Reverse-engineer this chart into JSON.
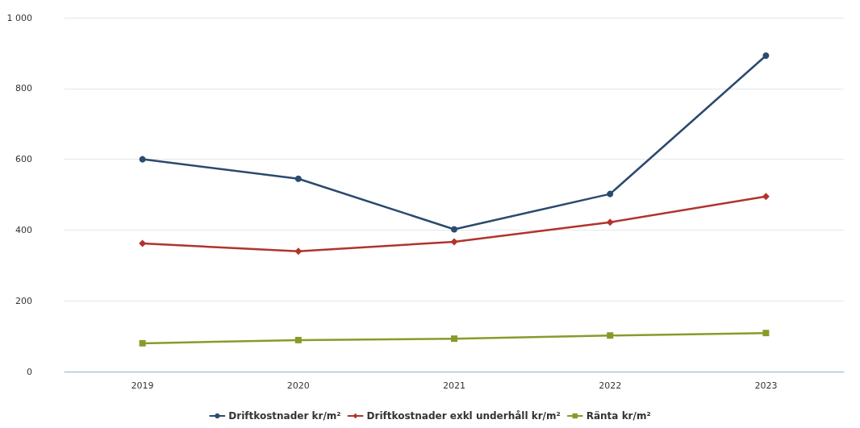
{
  "chart_data": {
    "type": "line",
    "categories": [
      "2019",
      "2020",
      "2021",
      "2022",
      "2023"
    ],
    "series": [
      {
        "name": "Driftkostnader kr/m²",
        "color": "#2b4a6e",
        "marker": "circle",
        "values": [
          600,
          545,
          402,
          502,
          893
        ]
      },
      {
        "name": "Driftkostnader exkl underhåll kr/m²",
        "color": "#b0342c",
        "marker": "diamond",
        "values": [
          362,
          340,
          367,
          422,
          495
        ]
      },
      {
        "name": "Ränta kr/m²",
        "color": "#8a9a2a",
        "marker": "square",
        "values": [
          80,
          89,
          93,
          102,
          109
        ]
      }
    ],
    "ylim": [
      0,
      1000
    ],
    "yticks": [
      0,
      200,
      400,
      600,
      800,
      {
        "value": 1000,
        "label": "1 000"
      }
    ],
    "grid": "y",
    "legend": "bottom",
    "line_style": "solid"
  }
}
